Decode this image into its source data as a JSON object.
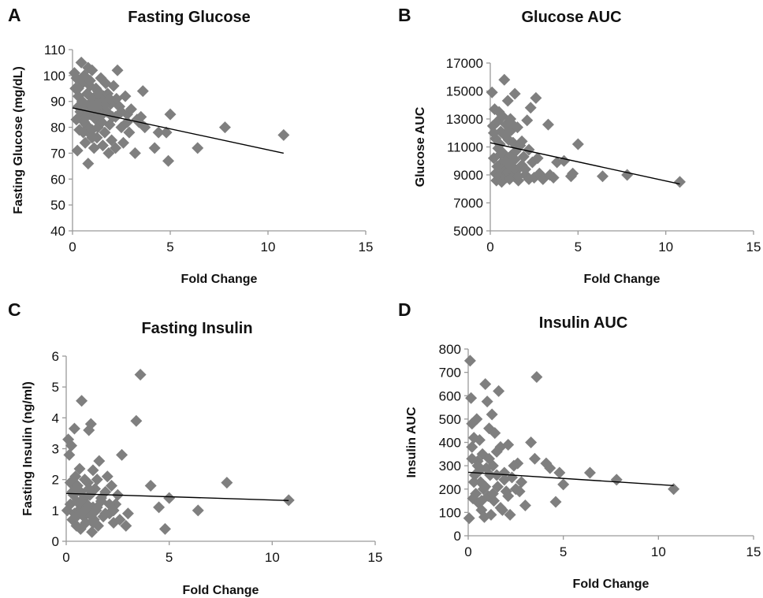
{
  "style": {
    "marker_color": "#7f7f7f",
    "axis_color": "#9a9a9a",
    "trend_color": "#000000",
    "marker_shape": "diamond"
  },
  "chart_data": [
    {
      "panel": "A",
      "type": "scatter",
      "title": "Fasting Glucose",
      "xlabel": "Fold Change",
      "ylabel": "Fasting Glucose (mg/dL)",
      "xlim": [
        0,
        15
      ],
      "ylim": [
        40,
        110
      ],
      "xticks": [
        0,
        5,
        10,
        15
      ],
      "yticks": [
        40,
        50,
        60,
        70,
        80,
        90,
        100,
        110
      ],
      "grid": false,
      "trendline": {
        "x": [
          0,
          10.8
        ],
        "y": [
          87.5,
          70
        ]
      },
      "series": [
        {
          "x": [
            0.1,
            0.15,
            0.2,
            0.2,
            0.25,
            0.3,
            0.3,
            0.35,
            0.4,
            0.4,
            0.45,
            0.5,
            0.5,
            0.55,
            0.6,
            0.6,
            0.65,
            0.7,
            0.7,
            0.75,
            0.8,
            0.8,
            0.85,
            0.9,
            0.9,
            0.95,
            1.0,
            1.0,
            1.05,
            1.1,
            1.1,
            1.15,
            1.2,
            1.2,
            1.25,
            1.3,
            1.3,
            1.35,
            1.4,
            1.45,
            1.5,
            1.5,
            1.55,
            1.6,
            1.65,
            1.7,
            1.75,
            1.8,
            1.85,
            1.9,
            1.95,
            2.0,
            2.05,
            2.1,
            2.2,
            2.25,
            2.3,
            2.4,
            2.5,
            2.6,
            2.7,
            2.8,
            2.9,
            3.0,
            3.2,
            3.3,
            3.4,
            3.5,
            3.6,
            3.7,
            4.2,
            4.4,
            4.8,
            4.9,
            5.0,
            6.4,
            7.8,
            10.8,
            0.3,
            0.5,
            0.6,
            0.7,
            0.9,
            1.0,
            1.1,
            1.3,
            1.5,
            1.7,
            1.9,
            2.2,
            2.5,
            2.8
          ],
          "y": [
            101,
            95,
            83,
            99,
            71,
            88,
            92,
            79,
            86,
            84,
            105,
            97,
            90,
            78,
            82,
            100,
            74,
            87,
            81,
            93,
            103,
            66,
            89,
            85,
            96,
            77,
            102,
            79,
            91,
            86,
            72,
            88,
            95,
            83,
            76,
            80,
            94,
            90,
            84,
            99,
            87,
            82,
            73,
            92,
            78,
            97,
            86,
            93,
            70,
            81,
            89,
            75,
            84,
            96,
            72,
            91,
            102,
            88,
            80,
            74,
            92,
            85,
            78,
            87,
            70,
            83,
            82,
            84,
            94,
            80,
            72,
            78,
            78,
            67,
            85,
            72,
            80,
            77,
            95,
            90,
            82,
            84,
            98,
            76,
            88,
            93,
            85,
            89,
            91,
            84,
            86,
            82
          ]
        }
      ]
    },
    {
      "panel": "B",
      "type": "scatter",
      "title": "Glucose AUC",
      "xlabel": "Fold Change",
      "ylabel": "Glucose AUC",
      "xlim": [
        0,
        15
      ],
      "ylim": [
        5000,
        17000
      ],
      "xticks": [
        0,
        5,
        10,
        15
      ],
      "yticks": [
        5000,
        7000,
        9000,
        11000,
        13000,
        15000,
        17000
      ],
      "grid": false,
      "trendline": {
        "x": [
          0,
          10.8
        ],
        "y": [
          11300,
          8350
        ]
      },
      "series": [
        {
          "x": [
            0.1,
            0.15,
            0.2,
            0.25,
            0.3,
            0.3,
            0.35,
            0.4,
            0.45,
            0.5,
            0.5,
            0.55,
            0.6,
            0.6,
            0.65,
            0.7,
            0.7,
            0.75,
            0.8,
            0.85,
            0.9,
            0.9,
            0.95,
            1.0,
            1.0,
            1.05,
            1.1,
            1.15,
            1.2,
            1.2,
            1.25,
            1.3,
            1.35,
            1.4,
            1.45,
            1.5,
            1.55,
            1.6,
            1.7,
            1.8,
            1.9,
            2.0,
            2.1,
            2.2,
            2.3,
            2.4,
            2.5,
            2.6,
            2.7,
            2.8,
            2.9,
            3.0,
            3.3,
            3.4,
            3.6,
            3.8,
            4.2,
            4.6,
            4.7,
            5.0,
            6.4,
            7.8,
            10.8,
            0.2,
            0.4,
            0.6,
            0.8,
            1.0,
            1.2,
            1.4,
            1.6,
            1.8,
            2.0,
            2.2
          ],
          "y": [
            14900,
            12500,
            10200,
            13700,
            9100,
            11600,
            8600,
            12800,
            10900,
            13500,
            8900,
            11200,
            9800,
            12100,
            8500,
            10600,
            13200,
            9400,
            15800,
            11800,
            8800,
            12600,
            10100,
            14300,
            9200,
            11500,
            8700,
            13000,
            10400,
            12200,
            9600,
            11300,
            8900,
            14800,
            10700,
            9300,
            12400,
            8600,
            11100,
            9700,
            10300,
            9000,
            12900,
            8700,
            13800,
            9900,
            8800,
            14500,
            10200,
            9100,
            8900,
            8700,
            12600,
            9000,
            8800,
            9900,
            10000,
            8900,
            9100,
            11200,
            8900,
            9000,
            8500,
            12000,
            9600,
            10500,
            11900,
            9800,
            12700,
            10100,
            8900,
            11400,
            9400,
            10800
          ]
        }
      ]
    },
    {
      "panel": "C",
      "type": "scatter",
      "title": "Fasting Insulin",
      "xlabel": "Fold Change",
      "ylabel": "Fasting Insulin (ng/ml)",
      "xlim": [
        0,
        15
      ],
      "ylim": [
        0,
        6
      ],
      "xticks": [
        0,
        5,
        10,
        15
      ],
      "yticks": [
        0,
        1,
        2,
        3,
        4,
        5,
        6
      ],
      "grid": false,
      "trendline": {
        "x": [
          0,
          10.8
        ],
        "y": [
          1.55,
          1.32
        ]
      },
      "series": [
        {
          "x": [
            0.05,
            0.1,
            0.15,
            0.2,
            0.2,
            0.25,
            0.3,
            0.35,
            0.4,
            0.4,
            0.45,
            0.5,
            0.5,
            0.55,
            0.6,
            0.65,
            0.7,
            0.7,
            0.75,
            0.8,
            0.85,
            0.9,
            0.9,
            0.95,
            1.0,
            1.05,
            1.1,
            1.1,
            1.15,
            1.2,
            1.25,
            1.3,
            1.3,
            1.35,
            1.4,
            1.45,
            1.5,
            1.55,
            1.6,
            1.7,
            1.8,
            1.9,
            2.0,
            2.1,
            2.2,
            2.3,
            2.4,
            2.5,
            2.7,
            2.9,
            3.0,
            3.4,
            3.6,
            4.1,
            4.5,
            4.8,
            5.0,
            6.4,
            7.8,
            10.8,
            0.3,
            0.5,
            0.7,
            0.9,
            1.1,
            1.3,
            1.5,
            1.7,
            1.9,
            2.1,
            2.3,
            2.6
          ],
          "y": [
            1.0,
            3.3,
            2.8,
            1.9,
            1.2,
            3.1,
            0.7,
            1.5,
            3.65,
            0.9,
            2.1,
            1.3,
            0.5,
            1.8,
            1.0,
            2.35,
            0.4,
            1.6,
            4.55,
            1.1,
            0.8,
            2.0,
            1.4,
            0.6,
            1.2,
            1.9,
            3.6,
            0.9,
            1.5,
            3.8,
            0.3,
            1.1,
            2.3,
            0.7,
            1.7,
            1.0,
            2.0,
            0.5,
            2.6,
            1.3,
            0.8,
            1.6,
            2.1,
            0.9,
            1.8,
            0.6,
            1.2,
            1.5,
            2.8,
            0.5,
            0.9,
            3.9,
            5.4,
            1.8,
            1.1,
            0.4,
            1.4,
            1.0,
            1.9,
            1.33,
            1.6,
            0.8,
            1.3,
            1.0,
            1.7,
            0.6,
            1.1,
            1.4,
            0.9,
            1.2,
            1.0,
            0.7
          ]
        }
      ]
    },
    {
      "panel": "D",
      "type": "scatter",
      "title": "Insulin AUC",
      "xlabel": "Fold Change",
      "ylabel": "Insulin AUC",
      "xlim": [
        0,
        15
      ],
      "ylim": [
        0,
        800
      ],
      "xticks": [
        0,
        5,
        10,
        15
      ],
      "yticks": [
        0,
        100,
        200,
        300,
        400,
        500,
        600,
        700,
        800
      ],
      "grid": false,
      "trendline": {
        "x": [
          0,
          10.8
        ],
        "y": [
          272,
          215
        ]
      },
      "series": [
        {
          "x": [
            0.05,
            0.1,
            0.15,
            0.2,
            0.2,
            0.25,
            0.3,
            0.35,
            0.4,
            0.45,
            0.5,
            0.55,
            0.6,
            0.65,
            0.7,
            0.75,
            0.8,
            0.85,
            0.9,
            0.95,
            1.0,
            1.05,
            1.1,
            1.15,
            1.2,
            1.25,
            1.3,
            1.35,
            1.4,
            1.5,
            1.55,
            1.6,
            1.7,
            1.8,
            1.9,
            2.0,
            2.1,
            2.2,
            2.3,
            2.5,
            2.6,
            2.8,
            3.0,
            3.3,
            3.5,
            3.6,
            4.1,
            4.3,
            4.6,
            4.8,
            5.0,
            6.4,
            7.8,
            10.8,
            0.3,
            0.5,
            0.7,
            0.9,
            1.1,
            1.3,
            1.5,
            1.7,
            1.9,
            2.1,
            2.4,
            2.7,
            0.2,
            0.6
          ],
          "y": [
            75,
            750,
            590,
            480,
            380,
            160,
            420,
            260,
            180,
            500,
            320,
            140,
            410,
            230,
            110,
            350,
            200,
            80,
            650,
            290,
            575,
            170,
            460,
            260,
            90,
            520,
            300,
            150,
            440,
            360,
            210,
            620,
            380,
            110,
            270,
            190,
            390,
            90,
            250,
            200,
            310,
            230,
            130,
            400,
            330,
            680,
            310,
            290,
            145,
            270,
            220,
            270,
            240,
            200,
            230,
            300,
            150,
            210,
            330,
            180,
            260,
            120,
            240,
            170,
            300,
            190,
            330,
            280
          ]
        }
      ]
    }
  ]
}
